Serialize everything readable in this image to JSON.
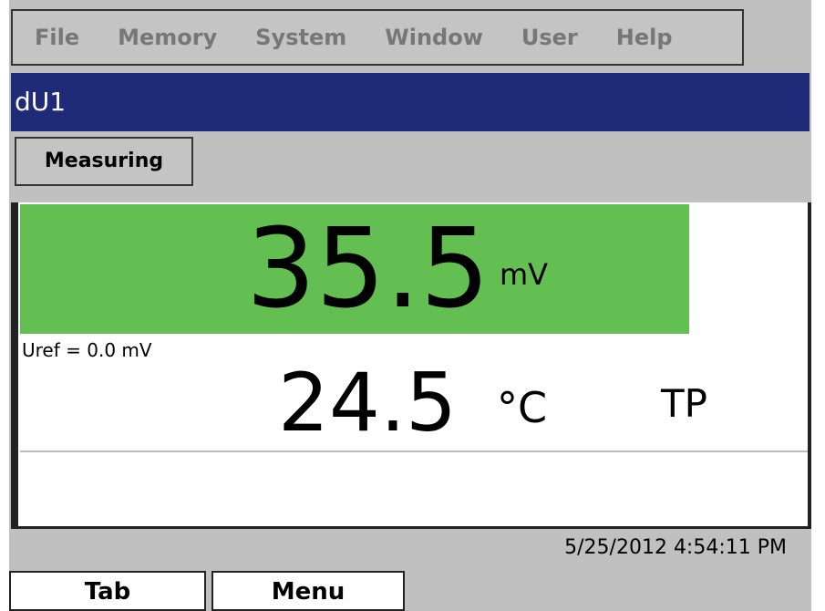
{
  "menu": [
    "File",
    "Memory",
    "System",
    "Window",
    "User",
    "Help"
  ],
  "window_title": "dU1",
  "tab": "Measuring",
  "main_value": "35.5",
  "main_unit": "mV",
  "uref": "Uref = 0.0 mV",
  "temp_value": "24.5",
  "temp_unit": "°C",
  "sensor": "TP",
  "timestamp": "5/25/2012 4:54:11 PM",
  "buttons": [
    "Tab",
    "Menu"
  ]
}
